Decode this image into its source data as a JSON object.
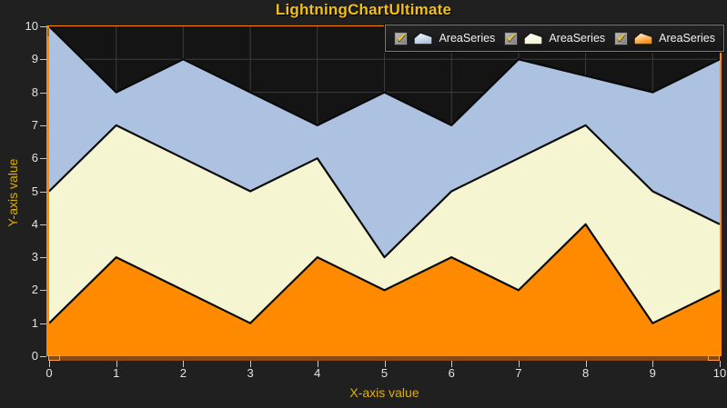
{
  "title": "LightningChartUltimate",
  "chart_data": {
    "type": "area",
    "title": "LightningChartUltimate",
    "xlabel": "X-axis value",
    "ylabel": "Y-axis value",
    "xlim": [
      0,
      10
    ],
    "ylim": [
      0,
      10
    ],
    "x_ticks": [
      0,
      1,
      2,
      3,
      4,
      5,
      6,
      7,
      8,
      9,
      10
    ],
    "y_ticks": [
      0,
      1,
      2,
      3,
      4,
      5,
      6,
      7,
      8,
      9,
      10
    ],
    "grid": true,
    "legend_position": "top-right-inside",
    "x": [
      0,
      1,
      2,
      3,
      4,
      5,
      6,
      7,
      8,
      9,
      10
    ],
    "series": [
      {
        "name": "AreaSeries",
        "color": "#adc2e0",
        "values": [
          10,
          8,
          9,
          8,
          7,
          8,
          7,
          9,
          8.5,
          8,
          9
        ]
      },
      {
        "name": "AreaSeries",
        "color": "#f5f5d2",
        "values": [
          5,
          7,
          6,
          5,
          6,
          3,
          5,
          6,
          7,
          5,
          4
        ]
      },
      {
        "name": "AreaSeries",
        "color": "#ff8a00",
        "values": [
          1,
          3,
          2,
          1,
          3,
          2,
          3,
          2,
          4,
          1,
          2
        ]
      }
    ]
  },
  "legend": {
    "check_glyph": "✔",
    "items": [
      {
        "label": "AreaSeries",
        "checked": true,
        "color": "#adc2e0"
      },
      {
        "label": "AreaSeries",
        "checked": true,
        "color": "#f5f5d2"
      },
      {
        "label": "AreaSeries",
        "checked": true,
        "color": "#ff8a00"
      }
    ]
  },
  "colors": {
    "background": "#202020",
    "plot_background": "#141414",
    "grid": "#3c3c3c",
    "axis_line": "#ff8a00",
    "title": "#f2c011",
    "axis_label": "#e0b000",
    "tick_label": "#e3e3e3",
    "series_outline": "#0a0a0a",
    "scrollbar_track": "#8a4a16"
  }
}
